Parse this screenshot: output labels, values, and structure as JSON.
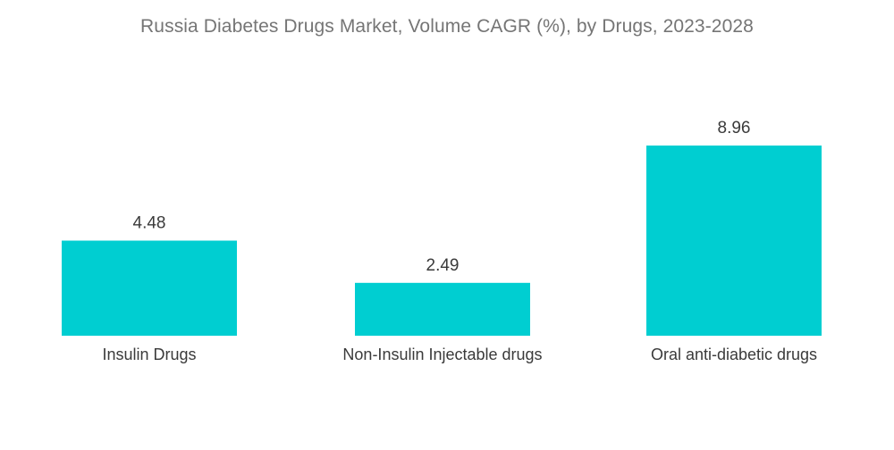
{
  "chart_data": {
    "type": "bar",
    "title": "Russia Diabetes Drugs Market, Volume CAGR (%), by Drugs, 2023-2028",
    "categories": [
      "Insulin Drugs",
      "Non-Insulin Injectable drugs",
      "Oral anti-diabetic drugs"
    ],
    "values": [
      4.48,
      2.49,
      8.96
    ],
    "value_labels": [
      "4.48",
      "2.49",
      "8.96"
    ],
    "xlabel": "",
    "ylabel": "",
    "ylim": [
      0,
      8.96
    ],
    "grid": false,
    "legend": "none",
    "bar_color": "#00CED1"
  }
}
